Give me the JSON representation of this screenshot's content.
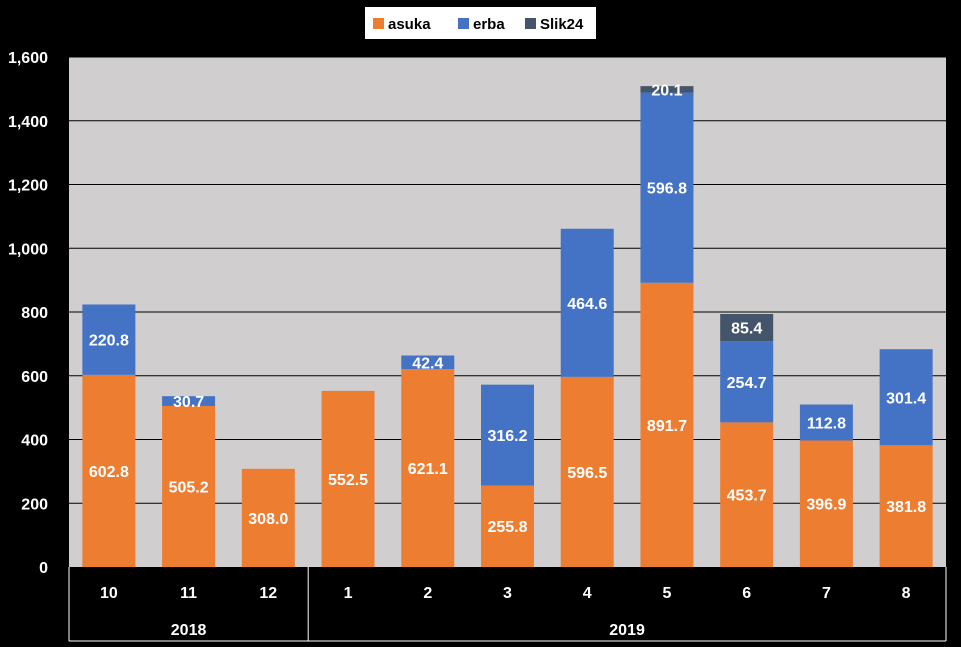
{
  "chart_data": {
    "type": "bar",
    "stacked": true,
    "categories": [
      "10",
      "11",
      "12",
      "1",
      "2",
      "3",
      "4",
      "5",
      "6",
      "7",
      "8"
    ],
    "groups": [
      {
        "label": "2018",
        "categories": [
          "10",
          "11",
          "12"
        ]
      },
      {
        "label": "2019",
        "categories": [
          "1",
          "2",
          "3",
          "4",
          "5",
          "6",
          "7",
          "8"
        ]
      }
    ],
    "series": [
      {
        "name": "asuka",
        "color": "#ED7D31",
        "values": [
          602.8,
          505.2,
          308.0,
          552.5,
          621.1,
          255.8,
          596.5,
          891.7,
          453.7,
          396.9,
          381.8
        ]
      },
      {
        "name": "erba",
        "color": "#4472C4",
        "values": [
          220.8,
          30.7,
          null,
          null,
          42.4,
          316.2,
          464.6,
          596.8,
          254.7,
          112.8,
          301.4
        ]
      },
      {
        "name": "Slik24",
        "color": "#44546A",
        "values": [
          null,
          null,
          null,
          null,
          null,
          null,
          null,
          20.1,
          85.4,
          null,
          null
        ]
      }
    ],
    "ylim": [
      0,
      1600
    ],
    "yticks": [
      "0",
      "200",
      "400",
      "600",
      "800",
      "1,000",
      "1,200",
      "1,400",
      "1,600"
    ],
    "ytick_values": [
      0,
      200,
      400,
      600,
      800,
      1000,
      1200,
      1400,
      1600
    ],
    "grid": true,
    "legend_position": "top",
    "plot_background": "#D0CECE",
    "background": "#000000"
  }
}
